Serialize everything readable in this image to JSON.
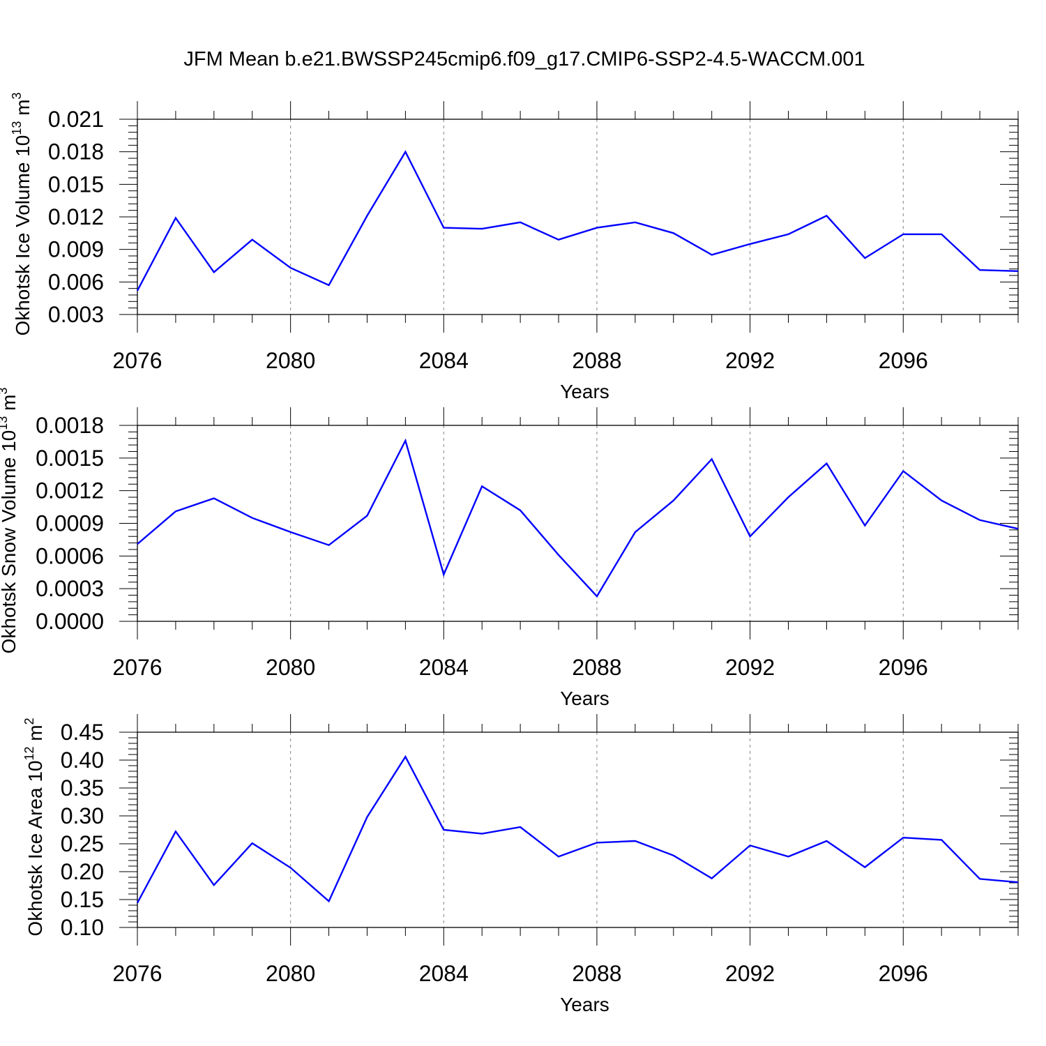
{
  "title": "JFM Mean b.e21.BWSSP245cmip6.f09_g17.CMIP6-SSP2-4.5-WACCM.001",
  "colors": {
    "line": "#0000ff",
    "axis": "#000000",
    "grid": "#808080"
  },
  "chart_data": [
    {
      "type": "line",
      "xlabel": "Years",
      "ylabel": {
        "text": "Okhotsk Ice Volume 10",
        "sup": "13",
        "unit": " m",
        "unit_sup": "3"
      },
      "xlim": [
        2076,
        2099
      ],
      "ylim": [
        0.003,
        0.021
      ],
      "x_ticks": [
        2076,
        2080,
        2084,
        2088,
        2092,
        2096
      ],
      "y_ticks": [
        "0.003",
        "0.006",
        "0.009",
        "0.012",
        "0.015",
        "0.018",
        "0.021"
      ],
      "grid": "vertical dashed at major x ticks",
      "x": [
        2076,
        2077,
        2078,
        2079,
        2080,
        2081,
        2082,
        2083,
        2084,
        2085,
        2086,
        2087,
        2088,
        2089,
        2090,
        2091,
        2092,
        2093,
        2094,
        2095,
        2096,
        2097,
        2098,
        2099
      ],
      "series": [
        {
          "values": [
            0.0052,
            0.0119,
            0.0069,
            0.0099,
            0.0073,
            0.0057,
            0.0121,
            0.018,
            0.011,
            0.0109,
            0.0115,
            0.0099,
            0.011,
            0.0115,
            0.0105,
            0.0085,
            0.0095,
            0.0104,
            0.0121,
            0.0082,
            0.0104,
            0.0104,
            0.0071,
            0.007
          ]
        }
      ]
    },
    {
      "type": "line",
      "xlabel": "Years",
      "ylabel": {
        "text": "Okhotsk Snow Volume 10",
        "sup": "13",
        "unit": " m",
        "unit_sup": "3"
      },
      "xlim": [
        2076,
        2099
      ],
      "ylim": [
        0.0,
        0.0018
      ],
      "x_ticks": [
        2076,
        2080,
        2084,
        2088,
        2092,
        2096
      ],
      "y_ticks": [
        "0.0000",
        "0.0003",
        "0.0006",
        "0.0009",
        "0.0012",
        "0.0015",
        "0.0018"
      ],
      "grid": "vertical dashed at major x ticks",
      "x": [
        2076,
        2077,
        2078,
        2079,
        2080,
        2081,
        2082,
        2083,
        2084,
        2085,
        2086,
        2087,
        2088,
        2089,
        2090,
        2091,
        2092,
        2093,
        2094,
        2095,
        2096,
        2097,
        2098,
        2099
      ],
      "series": [
        {
          "values": [
            0.00071,
            0.00101,
            0.00113,
            0.00095,
            0.00082,
            0.0007,
            0.00097,
            0.00166,
            0.00043,
            0.00124,
            0.00102,
            0.00061,
            0.00023,
            0.00082,
            0.00111,
            0.00149,
            0.00078,
            0.00114,
            0.00145,
            0.00088,
            0.00138,
            0.00111,
            0.00093,
            0.00085
          ]
        }
      ]
    },
    {
      "type": "line",
      "xlabel": "Years",
      "ylabel": {
        "text": "Okhotsk Ice Area 10",
        "sup": "12",
        "unit": " m",
        "unit_sup": "2"
      },
      "xlim": [
        2076,
        2099
      ],
      "ylim": [
        0.1,
        0.45
      ],
      "x_ticks": [
        2076,
        2080,
        2084,
        2088,
        2092,
        2096
      ],
      "y_ticks": [
        "0.10",
        "0.15",
        "0.20",
        "0.25",
        "0.30",
        "0.35",
        "0.40",
        "0.45"
      ],
      "grid": "vertical dashed at major x ticks",
      "x": [
        2076,
        2077,
        2078,
        2079,
        2080,
        2081,
        2082,
        2083,
        2084,
        2085,
        2086,
        2087,
        2088,
        2089,
        2090,
        2091,
        2092,
        2093,
        2094,
        2095,
        2096,
        2097,
        2098,
        2099
      ],
      "series": [
        {
          "values": [
            0.144,
            0.272,
            0.176,
            0.251,
            0.207,
            0.147,
            0.298,
            0.406,
            0.275,
            0.268,
            0.28,
            0.227,
            0.252,
            0.255,
            0.229,
            0.188,
            0.247,
            0.227,
            0.255,
            0.208,
            0.261,
            0.257,
            0.187,
            0.181
          ]
        }
      ]
    }
  ]
}
